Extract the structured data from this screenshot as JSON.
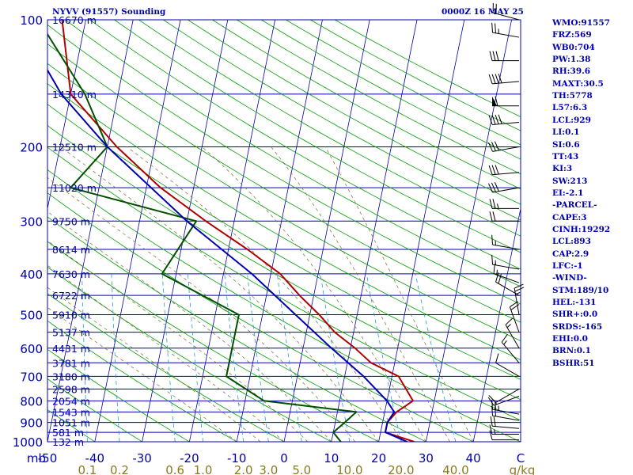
{
  "chart_data": {
    "type": "skew-t-log-p",
    "title_left": "NYVV (91557) Sounding",
    "title_right": "0000Z 16 MAY 25",
    "pressure_axis": {
      "label": "mb",
      "range": [
        1000,
        100
      ],
      "ticks": [
        100,
        200,
        300,
        400,
        500,
        600,
        700,
        800,
        900,
        1000
      ]
    },
    "temperature_axis": {
      "range": [
        -50,
        50
      ],
      "tick_labels": [
        "-50",
        "-40",
        "-30",
        "-20",
        "-10",
        "0",
        "10",
        "20",
        "30",
        "40",
        "C"
      ],
      "tick_values": [
        -50,
        -40,
        -30,
        -20,
        -10,
        0,
        10,
        20,
        30,
        40,
        50
      ]
    },
    "mixing_ratio_axis": {
      "unit": "g/kg",
      "tick_labels": [
        "0.1",
        "0.2",
        "0.6",
        "1.0",
        "2.0",
        "3.0",
        "5.0",
        "10.0",
        "20.0",
        "40.0"
      ],
      "tick_values": [
        0.1,
        0.2,
        0.6,
        1.0,
        2.0,
        3.0,
        5.0,
        10.0,
        20.0,
        40.0
      ]
    },
    "height_labels": [
      {
        "p": 100,
        "label": "16670 m"
      },
      {
        "p": 150,
        "label": "14310 m"
      },
      {
        "p": 200,
        "label": "12510 m"
      },
      {
        "p": 250,
        "label": "11020 m"
      },
      {
        "p": 300,
        "label": "9750 m"
      },
      {
        "p": 350,
        "label": "8614 m"
      },
      {
        "p": 400,
        "label": "7630 m"
      },
      {
        "p": 450,
        "label": "6722 m"
      },
      {
        "p": 500,
        "label": "5910 m"
      },
      {
        "p": 550,
        "label": "5137 m"
      },
      {
        "p": 600,
        "label": "4431 m"
      },
      {
        "p": 650,
        "label": "3781 m"
      },
      {
        "p": 700,
        "label": "3180 m"
      },
      {
        "p": 750,
        "label": "2598 m"
      },
      {
        "p": 800,
        "label": "2054 m"
      },
      {
        "p": 850,
        "label": "1543 m"
      },
      {
        "p": 900,
        "label": "1051 m"
      },
      {
        "p": 950,
        "label": "581 m"
      },
      {
        "p": 1000,
        "label": "132 m"
      }
    ],
    "series": [
      {
        "id": "temperature",
        "color": "#b00000",
        "points": [
          [
            1000,
            27.5
          ],
          [
            950,
            21
          ],
          [
            900,
            21
          ],
          [
            850,
            22.5
          ],
          [
            800,
            25.5
          ],
          [
            700,
            21.4
          ],
          [
            650,
            15
          ],
          [
            600,
            11
          ],
          [
            550,
            6
          ],
          [
            500,
            2
          ],
          [
            450,
            -3
          ],
          [
            400,
            -8
          ],
          [
            350,
            -16
          ],
          [
            300,
            -26
          ],
          [
            250,
            -37
          ],
          [
            200,
            -48
          ],
          [
            150,
            -60
          ],
          [
            100,
            -65
          ]
        ]
      },
      {
        "id": "dewpoint",
        "color": "#005000",
        "points": [
          [
            1000,
            12
          ],
          [
            950,
            10
          ],
          [
            900,
            12
          ],
          [
            850,
            14
          ],
          [
            800,
            -6
          ],
          [
            700,
            -15
          ],
          [
            500,
            -15
          ],
          [
            400,
            -33
          ],
          [
            300,
            -28
          ],
          [
            250,
            -56
          ],
          [
            200,
            -50
          ],
          [
            150,
            -57
          ],
          [
            100,
            -70
          ]
        ]
      },
      {
        "id": "parcel",
        "color": "#0000b0",
        "points": [
          [
            1000,
            26
          ],
          [
            950,
            21
          ],
          [
            900,
            21
          ],
          [
            850,
            22
          ],
          [
            800,
            20
          ],
          [
            700,
            14
          ],
          [
            600,
            6
          ],
          [
            500,
            -3
          ],
          [
            400,
            -14
          ],
          [
            300,
            -30
          ],
          [
            200,
            -50
          ],
          [
            150,
            -62
          ],
          [
            115,
            -70
          ]
        ]
      }
    ],
    "wind_barbs": [
      {
        "p": 990,
        "dir": 270,
        "spd": 10
      },
      {
        "p": 960,
        "dir": 270,
        "spd": 15
      },
      {
        "p": 930,
        "dir": 275,
        "spd": 20
      },
      {
        "p": 890,
        "dir": 280,
        "spd": 20
      },
      {
        "p": 860,
        "dir": 280,
        "spd": 25
      },
      {
        "p": 780,
        "dir": 250,
        "spd": 15
      },
      {
        "p": 750,
        "dir": 240,
        "spd": 10
      },
      {
        "p": 700,
        "dir": 300,
        "spd": 10
      },
      {
        "p": 650,
        "dir": 320,
        "spd": 15
      },
      {
        "p": 600,
        "dir": 330,
        "spd": 15
      },
      {
        "p": 550,
        "dir": 340,
        "spd": 20
      },
      {
        "p": 500,
        "dir": 350,
        "spd": 25
      },
      {
        "p": 450,
        "dir": 300,
        "spd": 20
      },
      {
        "p": 420,
        "dir": 290,
        "spd": 15
      },
      {
        "p": 390,
        "dir": 280,
        "spd": 15
      },
      {
        "p": 350,
        "dir": 280,
        "spd": 15
      },
      {
        "p": 300,
        "dir": 270,
        "spd": 20
      },
      {
        "p": 280,
        "dir": 270,
        "spd": 25
      },
      {
        "p": 250,
        "dir": 260,
        "spd": 30
      },
      {
        "p": 230,
        "dir": 265,
        "spd": 30
      },
      {
        "p": 200,
        "dir": 260,
        "spd": 30
      },
      {
        "p": 175,
        "dir": 265,
        "spd": 40
      },
      {
        "p": 160,
        "dir": 270,
        "spd": 60
      },
      {
        "p": 140,
        "dir": 265,
        "spd": 40
      },
      {
        "p": 125,
        "dir": 270,
        "spd": 30
      },
      {
        "p": 110,
        "dir": 280,
        "spd": 25
      },
      {
        "p": 100,
        "dir": 285,
        "spd": 20
      }
    ],
    "grid": true
  },
  "colors": {
    "isobar": "#0000b0",
    "isotherm": "#0000b0",
    "dry_adiabat": "#00a000",
    "moist_adiabat": "#7a6a30",
    "mixing_ratio": "#1f9fd0",
    "axis_text": "#0000b0",
    "mixing_text": "#8a7a20"
  },
  "stats": [
    "WMO:91557",
    "FRZ:569",
    "WB0:704",
    "PW:1.38",
    "RH:39.6",
    "MAXT:30.5",
    "TH:5778",
    "L57:6.3",
    "LCL:929",
    "LI:0.1",
    "SI:0.6",
    "TT:43",
    "KI:3",
    "SW:213",
    "EI:-2.1",
    "-PARCEL-",
    "CAPE:3",
    "CINH:19292",
    "LCL:893",
    "CAP:2.9",
    "LFC:-1",
    "-WIND-",
    "STM:189/10",
    "HEL:-131",
    "SHR+:0.0",
    "SRDS:-165",
    "EHI:0.0",
    "BRN:0.1",
    "BSHR:51"
  ]
}
